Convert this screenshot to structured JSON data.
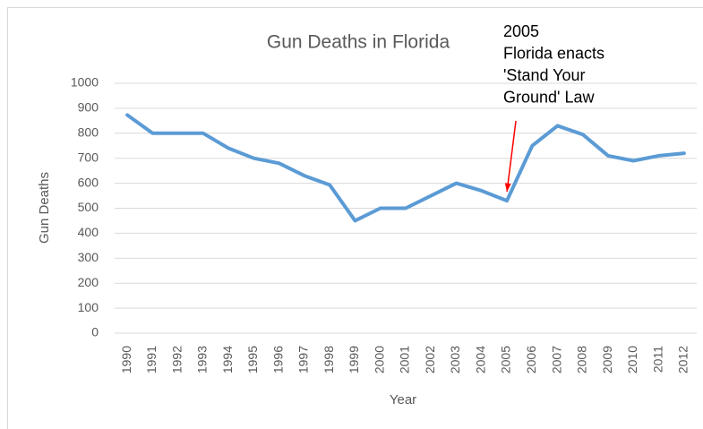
{
  "chart_data": {
    "type": "line",
    "title": "Gun Deaths in Florida",
    "x_label": "Year",
    "y_label": "Gun Deaths",
    "categories": [
      "1990",
      "1991",
      "1992",
      "1993",
      "1994",
      "1995",
      "1996",
      "1997",
      "1998",
      "1999",
      "2000",
      "2001",
      "2002",
      "2003",
      "2004",
      "2005",
      "2006",
      "2007",
      "2008",
      "2009",
      "2010",
      "2011",
      "2012"
    ],
    "values": [
      873,
      800,
      800,
      800,
      740,
      700,
      680,
      630,
      593,
      450,
      500,
      500,
      550,
      600,
      570,
      530,
      750,
      830,
      795,
      710,
      690,
      710,
      720
    ],
    "color": "#5b9bd5",
    "ylim": [
      0,
      1000
    ],
    "yticks": [
      0,
      100,
      200,
      300,
      400,
      500,
      600,
      700,
      800,
      900,
      1000
    ],
    "grid": true,
    "annotation": {
      "lines": [
        "2005",
        "Florida enacts",
        "'Stand Your",
        "Ground' Law"
      ],
      "category_index": 15,
      "color": "#ff0000"
    }
  }
}
